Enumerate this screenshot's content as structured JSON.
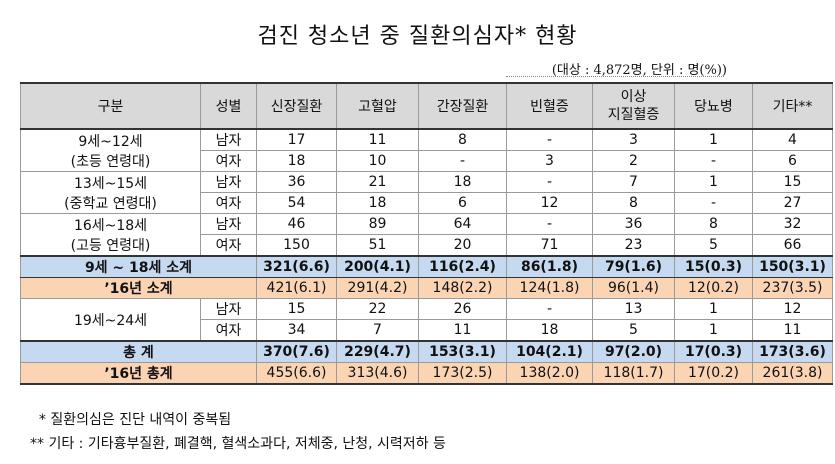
{
  "title": "검진 청소년 중 질환의심자* 현황",
  "unit": "(대상 : 4,872명, 단위 : 명(%))",
  "headers": [
    "구분",
    "성별",
    "신장질환",
    "고혈압",
    "간장질환",
    "빈혈증",
    "이상\n지질혈증",
    "당뇨병",
    "기타**"
  ],
  "groups": [
    {
      "label_lines": [
        "9세~12세",
        "(초등 연령대)"
      ],
      "rows": [
        [
          "남자",
          "17",
          "11",
          "8",
          "-",
          "3",
          "1",
          "4"
        ],
        [
          "여자",
          "18",
          "10",
          "-",
          "3",
          "2",
          "-",
          "6"
        ]
      ]
    },
    {
      "label_lines": [
        "13세~15세",
        "(중학교 연령대)"
      ],
      "rows": [
        [
          "남자",
          "36",
          "21",
          "18",
          "-",
          "7",
          "1",
          "15"
        ],
        [
          "여자",
          "54",
          "18",
          "6",
          "12",
          "8",
          "-",
          "27"
        ]
      ]
    },
    {
      "label_lines": [
        "16세~18세",
        "(고등 연령대)"
      ],
      "rows": [
        [
          "남자",
          "46",
          "89",
          "64",
          "-",
          "36",
          "8",
          "32"
        ],
        [
          "여자",
          "150",
          "51",
          "20",
          "71",
          "23",
          "5",
          "66"
        ]
      ]
    }
  ],
  "subtotal": {
    "label": "9세 ~ 18세 소계",
    "values": [
      "321(6.6)",
      "200(4.1)",
      "116(2.4)",
      "86(1.8)",
      "79(1.6)",
      "15(0.3)",
      "150(3.1)"
    ]
  },
  "prev_subtotal": {
    "label": "’16년 소계",
    "values": [
      "421(6.1)",
      "291(4.2)",
      "148(2.2)",
      "124(1.8)",
      "96(1.4)",
      "12(0.2)",
      "237(3.5)"
    ]
  },
  "adult": {
    "label_lines": [
      "19세~24세"
    ],
    "rows": [
      [
        "남자",
        "15",
        "22",
        "26",
        "-",
        "13",
        "1",
        "12"
      ],
      [
        "여자",
        "34",
        "7",
        "11",
        "18",
        "5",
        "1",
        "11"
      ]
    ]
  },
  "total": {
    "label": "총  계",
    "values": [
      "370(7.6)",
      "229(4.7)",
      "153(3.1)",
      "104(2.1)",
      "97(2.0)",
      "17(0.3)",
      "173(3.6)"
    ]
  },
  "prev_total": {
    "label": "’16년 총계",
    "values": [
      "455(6.6)",
      "313(4.6)",
      "173(2.5)",
      "138(2.0)",
      "118(1.7)",
      "17(0.2)",
      "261(3.8)"
    ]
  },
  "notes": [
    "  * 질환의심은 진단 내역이 중복됨",
    "** 기타 : 기타흉부질환, 폐결핵, 혈색소과다, 저체중, 난청, 시력저하 등"
  ]
}
